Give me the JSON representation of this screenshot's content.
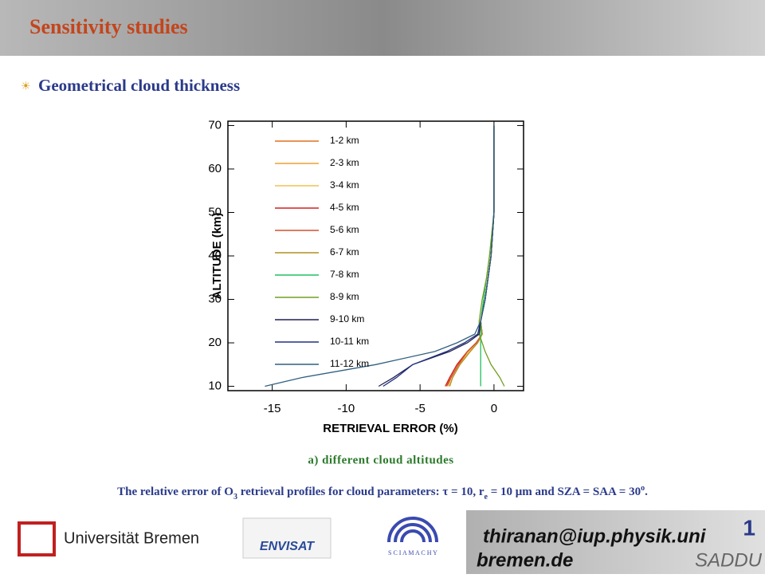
{
  "header": {
    "title": "Sensitivity studies"
  },
  "bullet": "Geometrical cloud thickness",
  "chart_data": {
    "type": "line",
    "xlabel": "RETRIEVAL ERROR (%)",
    "ylabel": "ALTITUDE (km)",
    "xlim": [
      -18,
      2
    ],
    "xticks": [
      -15,
      -10,
      -5,
      0
    ],
    "ylim": [
      9,
      71
    ],
    "yticks": [
      10,
      20,
      30,
      40,
      50,
      60,
      70
    ],
    "y": [
      10,
      12,
      15,
      18,
      20,
      22,
      25,
      30,
      35,
      40,
      50,
      60,
      70
    ],
    "series": [
      {
        "name": "1-2 km",
        "color": "#e07020",
        "values": [
          -3.2,
          -3.0,
          -2.5,
          -1.8,
          -1.2,
          -0.8,
          -0.9,
          -0.6,
          -0.4,
          -0.2,
          0,
          0,
          0
        ]
      },
      {
        "name": "2-3 km",
        "color": "#f0a030",
        "values": [
          -3.1,
          -2.9,
          -2.4,
          -1.7,
          -1.2,
          -0.8,
          -0.9,
          -0.6,
          -0.4,
          -0.2,
          0,
          0,
          0
        ]
      },
      {
        "name": "3-4 km",
        "color": "#f2c050",
        "values": [
          -3.0,
          -2.8,
          -2.3,
          -1.7,
          -1.1,
          -0.8,
          -0.9,
          -0.6,
          -0.4,
          -0.2,
          0,
          0,
          0
        ]
      },
      {
        "name": "4-5 km",
        "color": "#d02020",
        "values": [
          -3.3,
          -3.0,
          -2.5,
          -1.8,
          -1.2,
          -0.8,
          -0.9,
          -0.6,
          -0.4,
          -0.2,
          0,
          0,
          0
        ]
      },
      {
        "name": "5-6 km",
        "color": "#d05030",
        "values": [
          -3.2,
          -2.9,
          -2.4,
          -1.8,
          -1.2,
          -0.8,
          -0.9,
          -0.6,
          -0.4,
          -0.2,
          0,
          0,
          0
        ]
      },
      {
        "name": "6-7 km",
        "color": "#b09020",
        "values": [
          -3.0,
          -2.8,
          -2.3,
          -1.6,
          -1.1,
          -0.8,
          -0.9,
          -0.6,
          -0.4,
          -0.2,
          0,
          0,
          0
        ]
      },
      {
        "name": "7-8 km",
        "color": "#20c060",
        "values": [
          -0.9,
          -0.9,
          -0.9,
          -0.9,
          -0.9,
          -0.9,
          -0.9,
          -0.7,
          -0.5,
          -0.3,
          0,
          0,
          0
        ]
      },
      {
        "name": "8-9 km",
        "color": "#70a020",
        "values": [
          0.7,
          0.4,
          -0.2,
          -0.6,
          -0.8,
          -1.0,
          -1.0,
          -0.8,
          -0.5,
          -0.3,
          0,
          0,
          0
        ]
      },
      {
        "name": "9-10 km",
        "color": "#202050",
        "values": [
          -7.8,
          -6.8,
          -5.5,
          -3.0,
          -1.8,
          -1.0,
          -0.9,
          -0.6,
          -0.4,
          -0.2,
          0,
          0,
          0
        ]
      },
      {
        "name": "10-11 km",
        "color": "#203080",
        "values": [
          -7.5,
          -6.6,
          -5.5,
          -3.2,
          -2.0,
          -1.1,
          -0.9,
          -0.6,
          -0.4,
          -0.2,
          0,
          0,
          0
        ]
      },
      {
        "name": "11-12 km",
        "color": "#306080",
        "values": [
          -15.5,
          -13.0,
          -8.0,
          -4.0,
          -2.5,
          -1.3,
          -0.9,
          -0.6,
          -0.4,
          -0.2,
          0,
          0,
          0
        ]
      }
    ]
  },
  "caption": "a) different cloud altitudes",
  "note": [
    "The relative error of O",
    "3",
    " retrieval profiles for cloud parameters:  τ = 10, r",
    "e",
    " = 10 μm and SZA = SAA = 30",
    "o",
    "."
  ],
  "footer": {
    "university": "Universität Bremen",
    "envisat": "ENVISAT",
    "sciamachy": "S C I A M A C H Y",
    "email_1": "thiranan@iup.physik.uni",
    "email_2": "bremen.de",
    "page": "1",
    "name": "SADDU"
  }
}
